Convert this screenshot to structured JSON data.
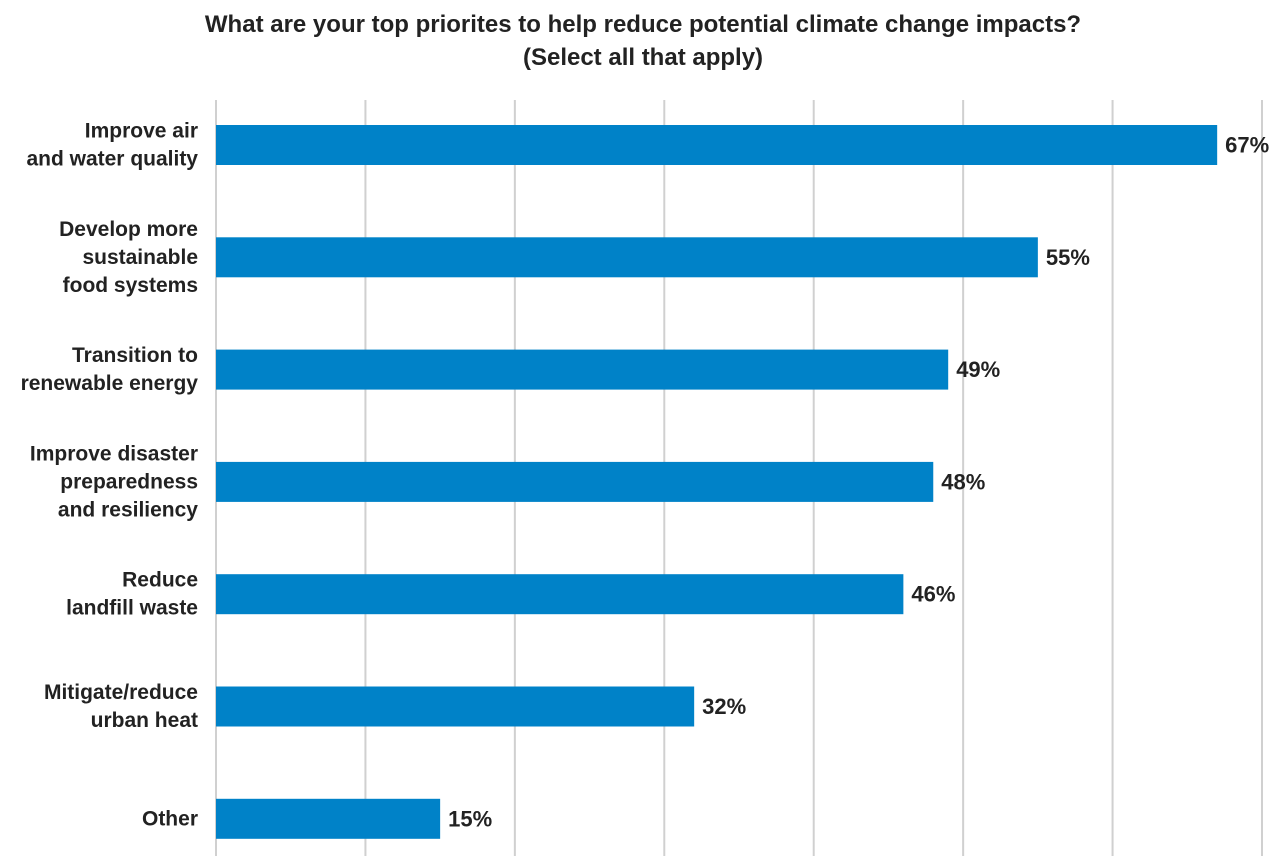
{
  "chart_data": {
    "type": "bar",
    "orientation": "horizontal",
    "title_lines": [
      "What are your top priorites to help reduce potential climate change impacts?",
      "(Select all that apply)"
    ],
    "categories": [
      [
        "Improve air",
        "and water quality"
      ],
      [
        "Develop more",
        "sustainable",
        "food systems"
      ],
      [
        "Transition to",
        "renewable energy"
      ],
      [
        "Improve disaster",
        "preparedness",
        "and resiliency"
      ],
      [
        "Reduce",
        "landfill waste"
      ],
      [
        "Mitigate/reduce",
        "urban heat"
      ],
      [
        "Other"
      ]
    ],
    "values": [
      67,
      55,
      49,
      48,
      46,
      32,
      15
    ],
    "value_labels": [
      "67%",
      "55%",
      "49%",
      "48%",
      "46%",
      "32%",
      "15%"
    ],
    "xlim": [
      0,
      70
    ],
    "grid": true,
    "xaxis_tick_labels": false,
    "bar_color": "#0082c8",
    "grid_color": "#d0d0d0",
    "text_color": "#222222"
  }
}
